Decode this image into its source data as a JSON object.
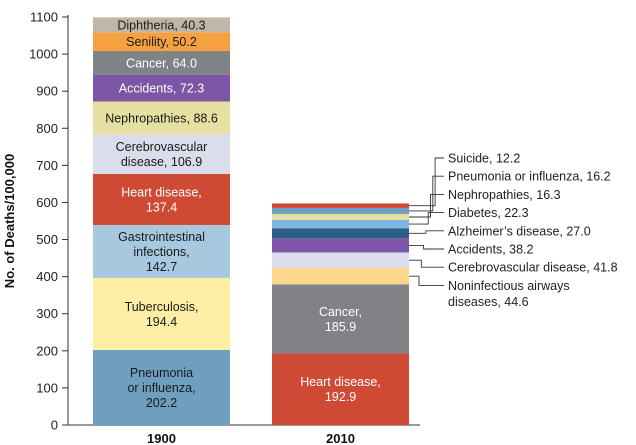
{
  "chart_data": {
    "type": "bar",
    "stacked": true,
    "ylabel": "No. of Deaths/100,000",
    "ylim": [
      0,
      1100
    ],
    "yticks": [
      0,
      100,
      200,
      300,
      400,
      500,
      600,
      700,
      800,
      900,
      1000,
      1100
    ],
    "categories": [
      "1900",
      "2010"
    ],
    "bars": [
      {
        "category": "1900",
        "segments": [
          {
            "lines": [
              "Pneumonia",
              "or influenza,",
              "202.2"
            ],
            "value": 202.2,
            "color": "#6f9fbe"
          },
          {
            "lines": [
              "Tuberculosis,",
              "194.4"
            ],
            "value": 194.4,
            "color": "#fcefa5"
          },
          {
            "lines": [
              "Gastrointestinal",
              "infections,",
              "142.7"
            ],
            "value": 142.7,
            "color": "#a7c8df"
          },
          {
            "lines": [
              "Heart disease,",
              "137.4"
            ],
            "value": 137.4,
            "color": "#cf4a35"
          },
          {
            "lines": [
              "Cerebrovascular",
              "disease, 106.9"
            ],
            "value": 106.9,
            "color": "#dbdcec"
          },
          {
            "lines": [
              "Nephropathies, 88.6"
            ],
            "value": 88.6,
            "color": "#e6e0a2"
          },
          {
            "lines": [
              "Accidents, 72.3"
            ],
            "value": 72.3,
            "color": "#7d55a6"
          },
          {
            "lines": [
              "Cancer, 64.0"
            ],
            "value": 64.0,
            "color": "#808285"
          },
          {
            "lines": [
              "Senility, 50.2"
            ],
            "value": 50.2,
            "color": "#f5a13f"
          },
          {
            "lines": [
              "Diphtheria, 40.3"
            ],
            "value": 40.3,
            "color": "#c2b6a8"
          }
        ]
      },
      {
        "category": "2010",
        "segments": [
          {
            "lines": [
              "Heart disease,",
              "192.9"
            ],
            "value": 192.9,
            "color": "#cf4a35"
          },
          {
            "lines": [
              "Cancer,",
              "185.9"
            ],
            "value": 185.9,
            "color": "#808285"
          },
          {
            "lines": [
              "Noninfectious airways",
              "diseases, 44.6"
            ],
            "value": 44.6,
            "color": "#fbd68c"
          },
          {
            "lines": [
              "Cerebrovascular disease, 41.8"
            ],
            "value": 41.8,
            "color": "#dbdcec"
          },
          {
            "lines": [
              "Accidents, 38.2"
            ],
            "value": 38.2,
            "color": "#7d55a6"
          },
          {
            "lines": [
              "Alzheimer’s disease, 27.0"
            ],
            "value": 27.0,
            "color": "#2b5f88"
          },
          {
            "lines": [
              "Diabetes, 22.3"
            ],
            "value": 22.3,
            "color": "#7eb6dd"
          },
          {
            "lines": [
              "Nephropathies, 16.3"
            ],
            "value": 16.3,
            "color": "#e6e0a2"
          },
          {
            "lines": [
              "Pneumonia or influenza, 16.2"
            ],
            "value": 16.2,
            "color": "#6f9fbe"
          },
          {
            "lines": [
              "Suicide, 12.2"
            ],
            "value": 12.2,
            "color": "#cf4a35"
          }
        ]
      }
    ]
  }
}
